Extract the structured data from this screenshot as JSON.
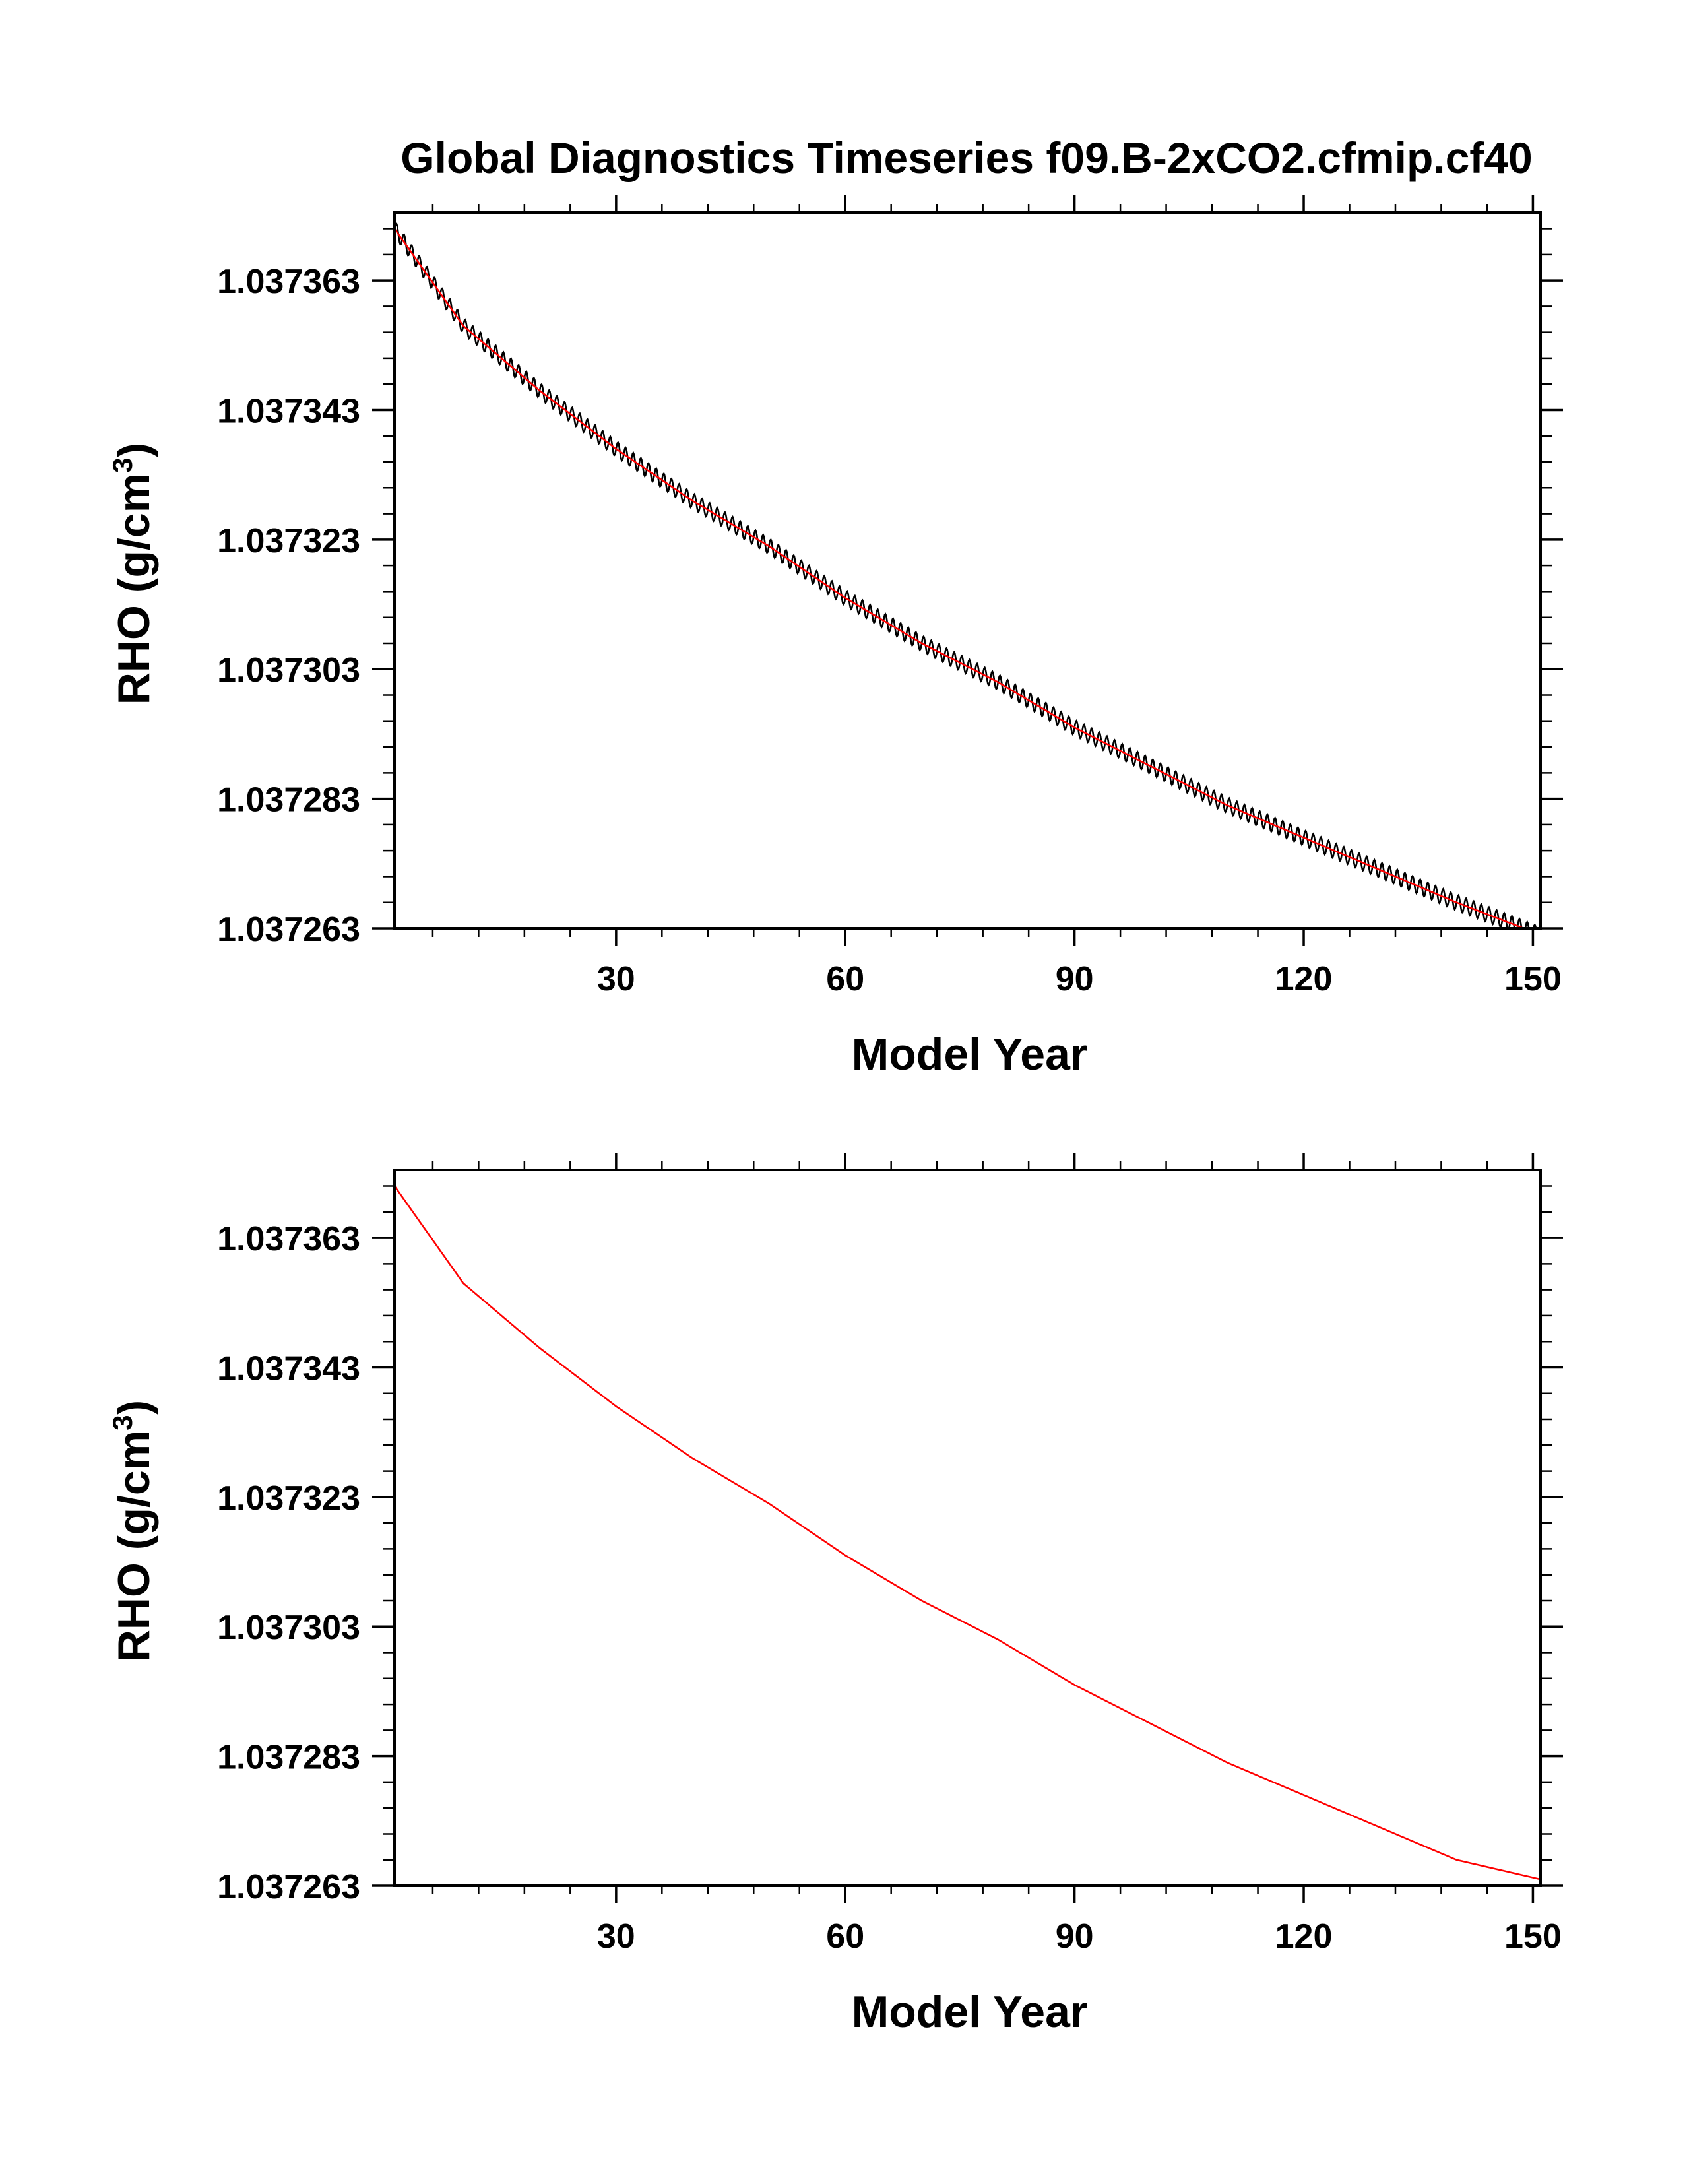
{
  "title": "Global Diagnostics Timeseries f09.B-2xCO2.cfmip.cf40",
  "colors": {
    "monthly_line": "#000000",
    "annual_line": "#ff0000",
    "frame": "#000000"
  },
  "chart_data": [
    {
      "type": "line",
      "xlabel": "Model Year",
      "ylabel": "RHO (g/cm",
      "ylabel_superscript": "3",
      "ylabel_suffix": ")",
      "xlim": [
        1,
        151
      ],
      "ylim": [
        1.037263,
        1.0373735
      ],
      "x_ticks": [
        30,
        60,
        90,
        120,
        150
      ],
      "x_tick_labels": [
        "30",
        "60",
        "90",
        "120",
        "150"
      ],
      "y_ticks": [
        1.037263,
        1.037283,
        1.037303,
        1.037323,
        1.037343,
        1.037363
      ],
      "y_tick_labels": [
        "1.037263",
        "1.037283",
        "1.037303",
        "1.037323",
        "1.037343",
        "1.037363"
      ],
      "series": [
        {
          "kind": "monthly",
          "color": "#000000",
          "seasonal_amplitude": 1.2e-06,
          "x": [
            1,
            10,
            20,
            30,
            40,
            50,
            60,
            70,
            80,
            90,
            100,
            110,
            120,
            130,
            140,
            151
          ],
          "y": [
            1.037371,
            1.037356,
            1.037346,
            1.037337,
            1.037329,
            1.037322,
            1.037314,
            1.037307,
            1.037301,
            1.037294,
            1.037288,
            1.037282,
            1.037277,
            1.037272,
            1.037267,
            1.037262
          ]
        },
        {
          "kind": "annual",
          "color": "#ff0000",
          "x": [
            1,
            10,
            20,
            30,
            40,
            50,
            60,
            70,
            80,
            90,
            100,
            110,
            120,
            130,
            140,
            151
          ],
          "y": [
            1.037371,
            1.037356,
            1.037346,
            1.037337,
            1.037329,
            1.037322,
            1.037314,
            1.037307,
            1.037301,
            1.037294,
            1.037288,
            1.037282,
            1.037277,
            1.037272,
            1.037267,
            1.037262
          ]
        }
      ],
      "grid": false
    },
    {
      "type": "line",
      "xlabel": "Model Year",
      "ylabel": "RHO (g/cm",
      "ylabel_superscript": "3",
      "ylabel_suffix": ")",
      "xlim": [
        1,
        151
      ],
      "ylim": [
        1.037263,
        1.0373735
      ],
      "x_ticks": [
        30,
        60,
        90,
        120,
        150
      ],
      "x_tick_labels": [
        "30",
        "60",
        "90",
        "120",
        "150"
      ],
      "y_ticks": [
        1.037263,
        1.037283,
        1.037303,
        1.037323,
        1.037343,
        1.037363
      ],
      "y_tick_labels": [
        "1.037263",
        "1.037283",
        "1.037303",
        "1.037323",
        "1.037343",
        "1.037363"
      ],
      "series": [
        {
          "kind": "annual",
          "color": "#ff0000",
          "x": [
            1,
            10,
            20,
            30,
            40,
            50,
            60,
            70,
            80,
            90,
            100,
            110,
            120,
            130,
            140,
            151
          ],
          "y": [
            1.037371,
            1.037356,
            1.037346,
            1.037337,
            1.037329,
            1.037322,
            1.037314,
            1.037307,
            1.037301,
            1.037294,
            1.037288,
            1.037282,
            1.037277,
            1.037272,
            1.037267,
            1.037264
          ]
        }
      ],
      "grid": false
    }
  ]
}
